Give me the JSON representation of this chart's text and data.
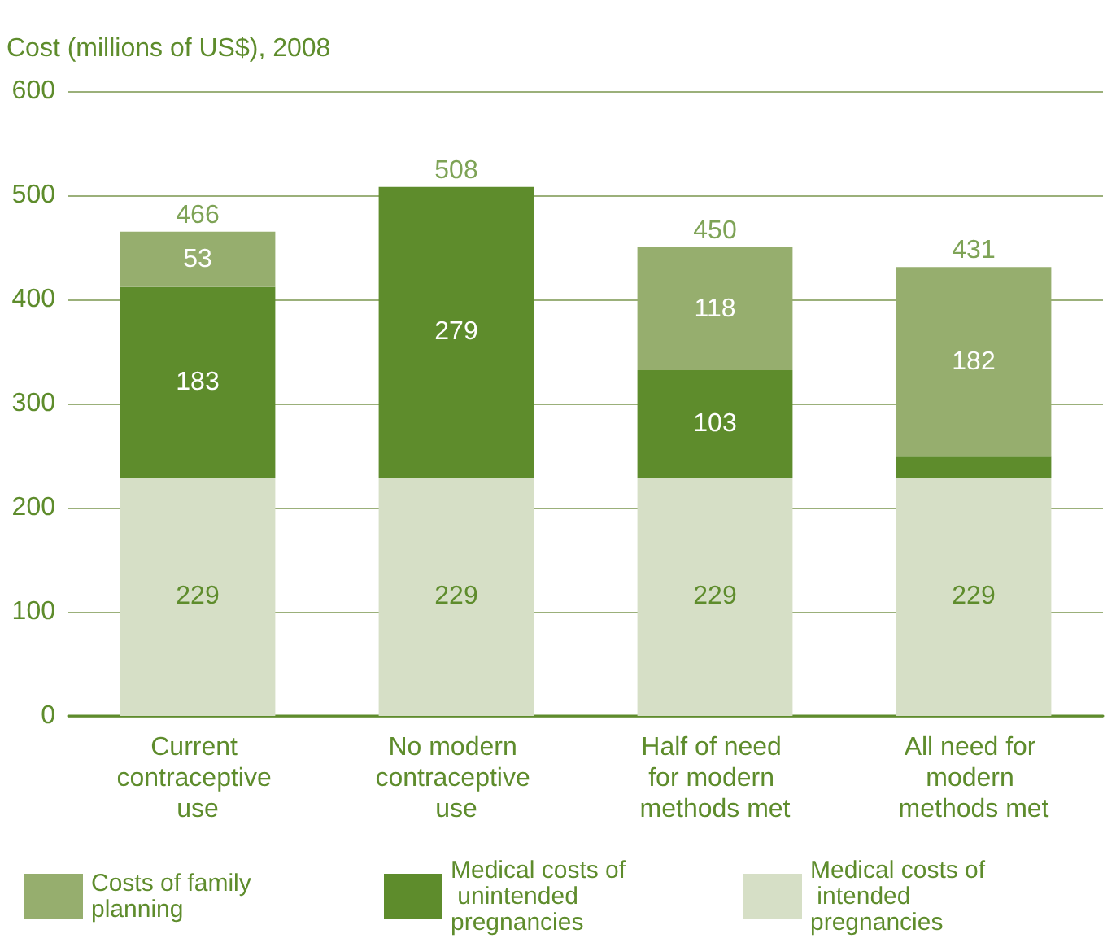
{
  "chart_data": {
    "type": "bar",
    "stacked": true,
    "ylabel": "Cost (millions of US$), 2008",
    "categories": [
      "Current contraceptive use",
      "No modern contraceptive use",
      "Half of need for modern methods met",
      "All need for modern methods met"
    ],
    "series": [
      {
        "name": "Medical costs of intended pregnancies",
        "color": "#d6dfc6",
        "values": [
          229,
          229,
          229,
          229
        ],
        "value_labels": [
          "229",
          "229",
          "229",
          "229"
        ]
      },
      {
        "name": "Medical costs of unintended pregnancies",
        "color": "#5e8c2c",
        "values": [
          183,
          279,
          103,
          20
        ],
        "value_labels": [
          "183",
          "279",
          "103",
          null
        ]
      },
      {
        "name": "Costs of family planning",
        "color": "#96ae6e",
        "values": [
          53,
          null,
          118,
          182
        ],
        "value_labels": [
          "53",
          null,
          "118",
          "182"
        ]
      }
    ],
    "totals": [
      "466",
      "508",
      "450",
      "431"
    ],
    "ylim": [
      0,
      600
    ],
    "yticks": [
      0,
      100,
      200,
      300,
      400,
      500,
      600
    ],
    "grid": "y",
    "legend": "bottom"
  }
}
